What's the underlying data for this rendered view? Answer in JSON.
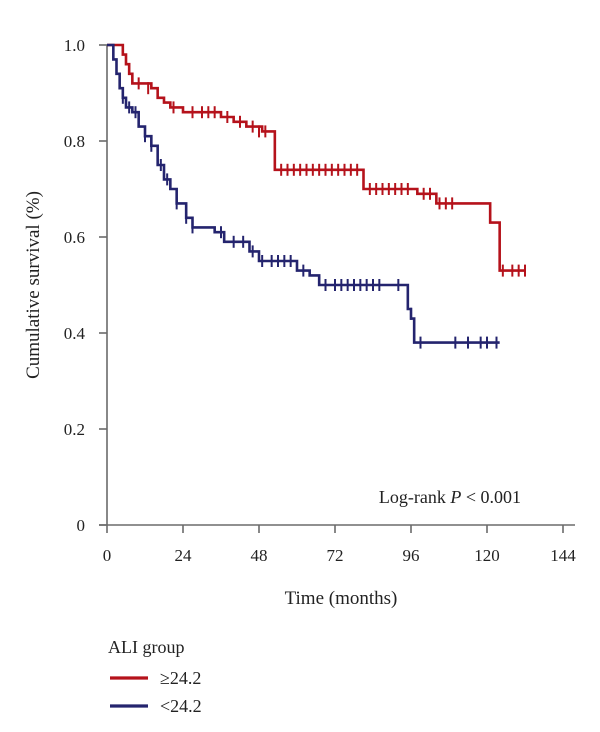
{
  "chart_data": {
    "type": "line",
    "title": "",
    "xlabel": "Time (months)",
    "ylabel": "Cumulative survival (%)",
    "xlim": [
      0,
      144
    ],
    "ylim": [
      0,
      1.0
    ],
    "x_ticks": [
      0,
      24,
      48,
      72,
      96,
      120,
      144
    ],
    "x_tick_labels": [
      "0",
      "24",
      "48",
      "72",
      "96",
      "120",
      "144"
    ],
    "y_ticks": [
      0,
      0.2,
      0.4,
      0.6,
      0.8,
      1.0
    ],
    "y_tick_labels": [
      "0",
      "0.2",
      "0.4",
      "0.6",
      "0.8",
      "1.0"
    ],
    "annotation": {
      "prefix": "Log-rank ",
      "p_symbol": "P",
      "suffix": " < 0.001"
    },
    "legend": {
      "title": "ALI group",
      "position": "bottom-left"
    },
    "grid": false,
    "series": [
      {
        "name": "≥24.2",
        "color": "#b5121b",
        "steps": [
          [
            0,
            1.0
          ],
          [
            3,
            1.0
          ],
          [
            5,
            0.98
          ],
          [
            6,
            0.96
          ],
          [
            7,
            0.94
          ],
          [
            8,
            0.92
          ],
          [
            14,
            0.91
          ],
          [
            16,
            0.89
          ],
          [
            18,
            0.88
          ],
          [
            20,
            0.87
          ],
          [
            24,
            0.86
          ],
          [
            36,
            0.85
          ],
          [
            40,
            0.84
          ],
          [
            44,
            0.83
          ],
          [
            49,
            0.82
          ],
          [
            53,
            0.74
          ],
          [
            81,
            0.7
          ],
          [
            98,
            0.69
          ],
          [
            104,
            0.67
          ],
          [
            112,
            0.67
          ],
          [
            117,
            0.67
          ],
          [
            121,
            0.63
          ],
          [
            124,
            0.53
          ],
          [
            132,
            0.53
          ]
        ],
        "censored": [
          [
            10,
            0.92
          ],
          [
            13,
            0.91
          ],
          [
            21,
            0.87
          ],
          [
            27,
            0.86
          ],
          [
            30,
            0.86
          ],
          [
            32,
            0.86
          ],
          [
            34,
            0.86
          ],
          [
            38,
            0.85
          ],
          [
            42,
            0.84
          ],
          [
            46,
            0.83
          ],
          [
            48,
            0.82
          ],
          [
            50,
            0.82
          ],
          [
            55,
            0.74
          ],
          [
            57,
            0.74
          ],
          [
            59,
            0.74
          ],
          [
            61,
            0.74
          ],
          [
            63,
            0.74
          ],
          [
            65,
            0.74
          ],
          [
            67,
            0.74
          ],
          [
            69,
            0.74
          ],
          [
            71,
            0.74
          ],
          [
            73,
            0.74
          ],
          [
            75,
            0.74
          ],
          [
            77,
            0.74
          ],
          [
            79,
            0.74
          ],
          [
            83,
            0.7
          ],
          [
            85,
            0.7
          ],
          [
            87,
            0.7
          ],
          [
            89,
            0.7
          ],
          [
            91,
            0.7
          ],
          [
            93,
            0.7
          ],
          [
            95,
            0.7
          ],
          [
            100,
            0.69
          ],
          [
            102,
            0.69
          ],
          [
            105,
            0.67
          ],
          [
            107,
            0.67
          ],
          [
            109,
            0.67
          ],
          [
            125,
            0.53
          ],
          [
            128,
            0.53
          ],
          [
            130,
            0.53
          ],
          [
            132,
            0.53
          ]
        ]
      },
      {
        "name": "<24.2",
        "color": "#24246e",
        "steps": [
          [
            0,
            1.0
          ],
          [
            2,
            0.97
          ],
          [
            3,
            0.94
          ],
          [
            4,
            0.91
          ],
          [
            5,
            0.89
          ],
          [
            6,
            0.87
          ],
          [
            8,
            0.86
          ],
          [
            10,
            0.83
          ],
          [
            12,
            0.81
          ],
          [
            14,
            0.79
          ],
          [
            16,
            0.75
          ],
          [
            18,
            0.72
          ],
          [
            20,
            0.7
          ],
          [
            22,
            0.67
          ],
          [
            25,
            0.64
          ],
          [
            27,
            0.62
          ],
          [
            34,
            0.61
          ],
          [
            37,
            0.59
          ],
          [
            45,
            0.57
          ],
          [
            48,
            0.55
          ],
          [
            60,
            0.53
          ],
          [
            64,
            0.52
          ],
          [
            67,
            0.5
          ],
          [
            95,
            0.45
          ],
          [
            96,
            0.43
          ],
          [
            97,
            0.38
          ],
          [
            124,
            0.38
          ]
        ],
        "censored": [
          [
            5,
            0.89
          ],
          [
            7,
            0.87
          ],
          [
            9,
            0.86
          ],
          [
            12,
            0.81
          ],
          [
            14,
            0.79
          ],
          [
            17,
            0.75
          ],
          [
            19,
            0.72
          ],
          [
            22,
            0.67
          ],
          [
            25,
            0.64
          ],
          [
            27,
            0.62
          ],
          [
            36,
            0.61
          ],
          [
            40,
            0.59
          ],
          [
            43,
            0.59
          ],
          [
            46,
            0.57
          ],
          [
            49,
            0.55
          ],
          [
            52,
            0.55
          ],
          [
            54,
            0.55
          ],
          [
            56,
            0.55
          ],
          [
            58,
            0.55
          ],
          [
            62,
            0.53
          ],
          [
            69,
            0.5
          ],
          [
            72,
            0.5
          ],
          [
            74,
            0.5
          ],
          [
            76,
            0.5
          ],
          [
            78,
            0.5
          ],
          [
            80,
            0.5
          ],
          [
            82,
            0.5
          ],
          [
            84,
            0.5
          ],
          [
            86,
            0.5
          ],
          [
            92,
            0.5
          ],
          [
            96,
            0.44
          ],
          [
            99,
            0.38
          ],
          [
            110,
            0.38
          ],
          [
            114,
            0.38
          ],
          [
            118,
            0.38
          ],
          [
            120,
            0.38
          ],
          [
            123,
            0.38
          ]
        ]
      }
    ]
  }
}
